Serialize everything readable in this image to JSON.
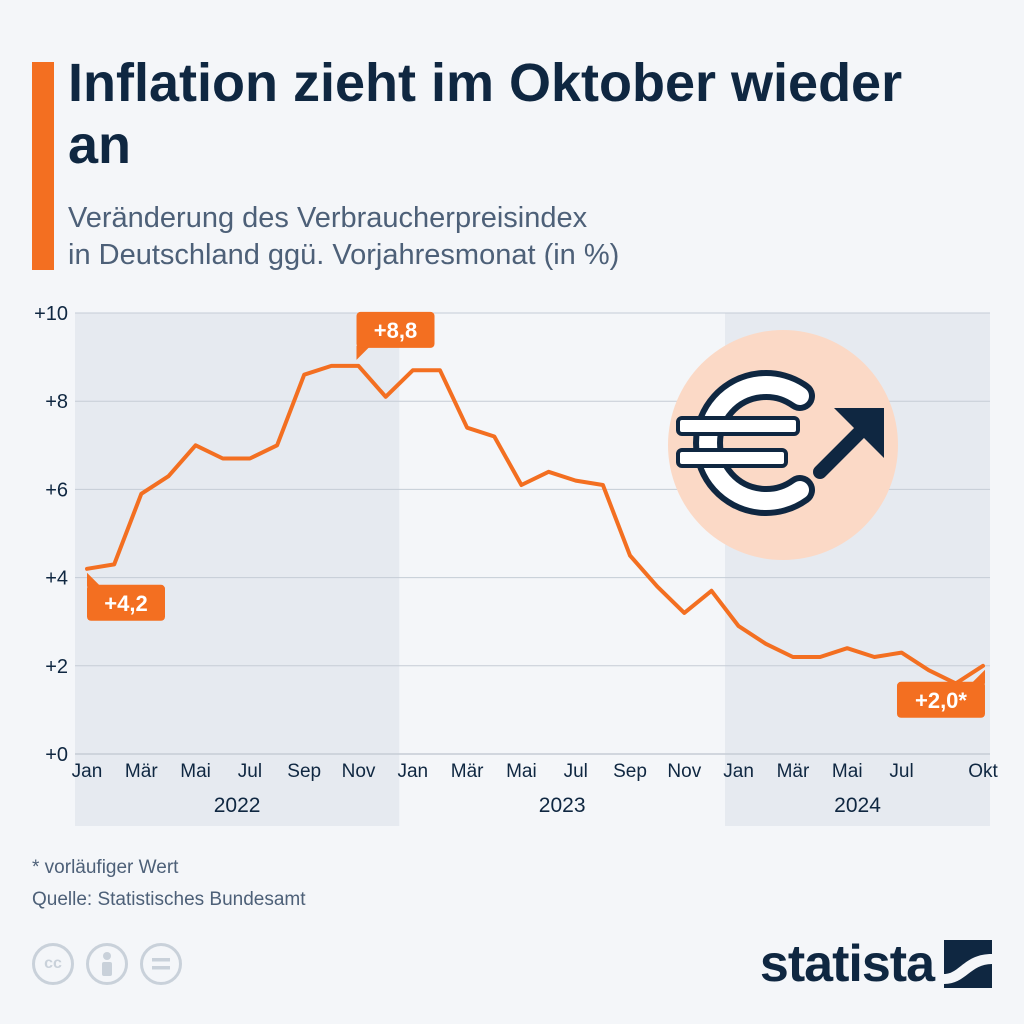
{
  "header": {
    "title": "Inflation zieht im Oktober wieder an",
    "subtitle_line1": "Veränderung des Verbraucherpreisindex",
    "subtitle_line2": "in Deutschland ggü. Vorjahresmonat (in %)"
  },
  "chart_data": {
    "type": "line",
    "title": "Inflation zieht im Oktober wieder an",
    "subtitle": "Veränderung des Verbraucherpreisindex in Deutschland ggü. Vorjahresmonat (in %)",
    "ylim": [
      0,
      10
    ],
    "y_ticks": [
      "+0",
      "+2",
      "+4",
      "+6",
      "+8",
      "+10"
    ],
    "y_tick_values": [
      0,
      2,
      4,
      6,
      8,
      10
    ],
    "grid": true,
    "x_tick_labels": [
      "Jan",
      "Mär",
      "Mai",
      "Jul",
      "Sep",
      "Nov",
      "Jan",
      "Mär",
      "Mai",
      "Jul",
      "Sep",
      "Nov",
      "Jan",
      "Mär",
      "Mai",
      "Jul",
      "Okt"
    ],
    "x_tick_months": [
      0,
      2,
      4,
      6,
      8,
      10,
      12,
      14,
      16,
      18,
      20,
      22,
      24,
      26,
      28,
      30,
      33
    ],
    "years": [
      {
        "label": "2022",
        "start_month": 0,
        "end_month": 12
      },
      {
        "label": "2023",
        "start_month": 12,
        "end_month": 24
      },
      {
        "label": "2024",
        "start_month": 24,
        "end_month": 34
      }
    ],
    "x": [
      "Jan 2022",
      "Feb 2022",
      "Mär 2022",
      "Apr 2022",
      "Mai 2022",
      "Jun 2022",
      "Jul 2022",
      "Aug 2022",
      "Sep 2022",
      "Okt 2022",
      "Nov 2022",
      "Dez 2022",
      "Jan 2023",
      "Feb 2023",
      "Mär 2023",
      "Apr 2023",
      "Mai 2023",
      "Jun 2023",
      "Jul 2023",
      "Aug 2023",
      "Sep 2023",
      "Okt 2023",
      "Nov 2023",
      "Dez 2023",
      "Jan 2024",
      "Feb 2024",
      "Mär 2024",
      "Apr 2024",
      "Mai 2024",
      "Jun 2024",
      "Jul 2024",
      "Aug 2024",
      "Sep 2024",
      "Okt 2024"
    ],
    "series": [
      {
        "color": "#f36f21",
        "values": [
          4.2,
          4.3,
          5.9,
          6.3,
          7.0,
          6.7,
          6.7,
          7.0,
          8.6,
          8.8,
          8.8,
          8.1,
          8.7,
          8.7,
          7.4,
          7.2,
          6.1,
          6.4,
          6.2,
          6.1,
          4.5,
          3.8,
          3.2,
          3.7,
          2.9,
          2.5,
          2.2,
          2.2,
          2.4,
          2.2,
          2.3,
          1.9,
          1.6,
          2.0
        ]
      }
    ],
    "annotations": [
      {
        "month": 0,
        "text": "+4,2",
        "position": "below"
      },
      {
        "month": 10,
        "text": "+8,8",
        "position": "above"
      },
      {
        "month": 33,
        "text": "+2,0*",
        "position": "below"
      }
    ]
  },
  "colors": {
    "line": "#f36f21",
    "title": "#0f2741",
    "text": "#4d6078",
    "grid": "#c5ccd6",
    "band": "#e6eaf0"
  },
  "icon": "euro-rising-icon",
  "footer": {
    "note": "* vorläufiger Wert",
    "source": "Quelle: Statistisches Bundesamt",
    "license_icons": [
      "cc-icon",
      "by-icon",
      "nd-icon"
    ],
    "brand": "statista"
  }
}
